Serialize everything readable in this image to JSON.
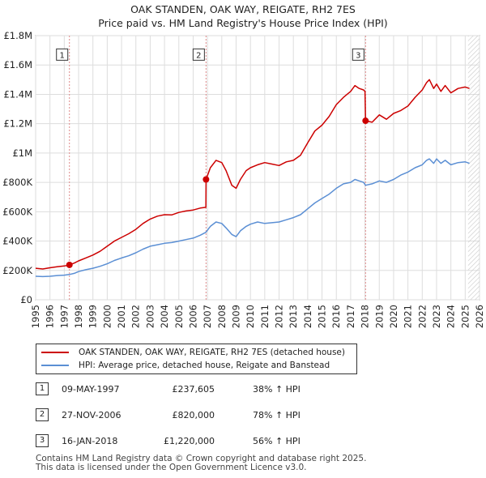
{
  "title_line1": "OAK STANDEN, OAK WAY, REIGATE, RH2 7ES",
  "title_line2": "Price paid vs. HM Land Registry's House Price Index (HPI)",
  "chart_data": {
    "type": "line",
    "title": "OAK STANDEN, OAK WAY, REIGATE, RH2 7ES — Price paid vs. HM Land Registry's House Price Index (HPI)",
    "xlim": [
      1995,
      2026
    ],
    "ylim": [
      0,
      1800000
    ],
    "x_ticks": [
      "1995",
      "1996",
      "1997",
      "1998",
      "1999",
      "2000",
      "2001",
      "2002",
      "2003",
      "2004",
      "2005",
      "2006",
      "2007",
      "2008",
      "2009",
      "2010",
      "2011",
      "2012",
      "2013",
      "2014",
      "2015",
      "2016",
      "2017",
      "2018",
      "2019",
      "2020",
      "2021",
      "2022",
      "2023",
      "2024",
      "2025",
      "2026"
    ],
    "y_ticks": [
      {
        "value": 0,
        "label": "£0"
      },
      {
        "value": 200000,
        "label": "£200K"
      },
      {
        "value": 400000,
        "label": "£400K"
      },
      {
        "value": 600000,
        "label": "£600K"
      },
      {
        "value": 800000,
        "label": "£800K"
      },
      {
        "value": 1000000,
        "label": "£1M"
      },
      {
        "value": 1200000,
        "label": "£1.2M"
      },
      {
        "value": 1400000,
        "label": "£1.4M"
      },
      {
        "value": 1600000,
        "label": "£1.6M"
      },
      {
        "value": 1800000,
        "label": "£1.8M"
      }
    ],
    "grid": true,
    "shaded_region": {
      "from": 2025.2,
      "to": 2026,
      "note": "forecast hatched"
    },
    "series": [
      {
        "name": "OAK STANDEN, OAK WAY, REIGATE, RH2 7ES (detached house)",
        "color": "#cc0000",
        "x": [
          1995.0,
          1995.5,
          1996.0,
          1996.5,
          1997.0,
          1997.36,
          1997.7,
          1998.0,
          1998.5,
          1999.0,
          1999.5,
          2000.0,
          2000.5,
          2001.0,
          2001.5,
          2002.0,
          2002.5,
          2003.0,
          2003.5,
          2004.0,
          2004.5,
          2005.0,
          2005.5,
          2006.0,
          2006.5,
          2006.89,
          2006.9,
          2007.2,
          2007.6,
          2008.0,
          2008.3,
          2008.7,
          2009.0,
          2009.3,
          2009.7,
          2010.0,
          2010.5,
          2011.0,
          2011.5,
          2012.0,
          2012.5,
          2013.0,
          2013.5,
          2014.0,
          2014.5,
          2015.0,
          2015.5,
          2016.0,
          2016.5,
          2017.0,
          2017.3,
          2017.6,
          2017.9,
          2018.0,
          2018.04,
          2018.5,
          2019.0,
          2019.5,
          2020.0,
          2020.5,
          2021.0,
          2021.5,
          2022.0,
          2022.3,
          2022.5,
          2022.8,
          2023.0,
          2023.3,
          2023.6,
          2024.0,
          2024.5,
          2025.0,
          2025.3
        ],
        "values": [
          215000,
          210000,
          218000,
          225000,
          230000,
          237605,
          250000,
          265000,
          285000,
          305000,
          330000,
          365000,
          400000,
          425000,
          450000,
          480000,
          520000,
          550000,
          570000,
          580000,
          578000,
          595000,
          605000,
          612000,
          625000,
          630000,
          820000,
          900000,
          950000,
          935000,
          880000,
          780000,
          760000,
          820000,
          880000,
          900000,
          920000,
          935000,
          925000,
          915000,
          940000,
          950000,
          985000,
          1070000,
          1150000,
          1190000,
          1250000,
          1330000,
          1380000,
          1420000,
          1460000,
          1440000,
          1430000,
          1420000,
          1220000,
          1210000,
          1260000,
          1230000,
          1270000,
          1290000,
          1320000,
          1380000,
          1430000,
          1480000,
          1500000,
          1440000,
          1470000,
          1420000,
          1460000,
          1410000,
          1440000,
          1450000,
          1440000
        ]
      },
      {
        "name": "HPI: Average price, detached house, Reigate and Banstead",
        "color": "#5b8fd4",
        "x": [
          1995.0,
          1995.5,
          1996.0,
          1996.5,
          1997.0,
          1997.36,
          1997.7,
          1998.0,
          1998.5,
          1999.0,
          1999.5,
          2000.0,
          2000.5,
          2001.0,
          2001.5,
          2002.0,
          2002.5,
          2003.0,
          2003.5,
          2004.0,
          2004.5,
          2005.0,
          2005.5,
          2006.0,
          2006.5,
          2006.89,
          2007.2,
          2007.6,
          2008.0,
          2008.3,
          2008.7,
          2009.0,
          2009.3,
          2009.7,
          2010.0,
          2010.5,
          2011.0,
          2011.5,
          2012.0,
          2012.5,
          2013.0,
          2013.5,
          2014.0,
          2014.5,
          2015.0,
          2015.5,
          2016.0,
          2016.5,
          2017.0,
          2017.3,
          2017.6,
          2017.9,
          2018.04,
          2018.5,
          2019.0,
          2019.5,
          2020.0,
          2020.5,
          2021.0,
          2021.5,
          2022.0,
          2022.3,
          2022.5,
          2022.8,
          2023.0,
          2023.3,
          2023.6,
          2024.0,
          2024.5,
          2025.0,
          2025.3
        ],
        "values": [
          160000,
          158000,
          160000,
          165000,
          168000,
          172000,
          180000,
          192000,
          205000,
          215000,
          228000,
          245000,
          268000,
          285000,
          300000,
          320000,
          345000,
          365000,
          375000,
          385000,
          390000,
          400000,
          410000,
          420000,
          440000,
          460000,
          500000,
          530000,
          520000,
          490000,
          445000,
          430000,
          470000,
          500000,
          515000,
          530000,
          520000,
          525000,
          530000,
          545000,
          560000,
          580000,
          620000,
          660000,
          690000,
          720000,
          760000,
          790000,
          800000,
          820000,
          810000,
          800000,
          780000,
          790000,
          810000,
          800000,
          820000,
          850000,
          870000,
          900000,
          920000,
          950000,
          960000,
          930000,
          960000,
          930000,
          950000,
          920000,
          935000,
          940000,
          930000
        ]
      }
    ],
    "sales": [
      {
        "marker": "1",
        "x": 1997.36,
        "value": 237605
      },
      {
        "marker": "2",
        "x": 2006.9,
        "value": 820000
      },
      {
        "marker": "3",
        "x": 2018.04,
        "value": 1220000
      }
    ]
  },
  "legend": [
    {
      "label": "OAK STANDEN, OAK WAY, REIGATE, RH2 7ES (detached house)",
      "color": "#cc0000"
    },
    {
      "label": "HPI: Average price, detached house, Reigate and Banstead",
      "color": "#5b8fd4"
    }
  ],
  "sales_table": [
    {
      "num": "1",
      "date": "09-MAY-1997",
      "price": "£237,605",
      "hpi": "38% ↑ HPI"
    },
    {
      "num": "2",
      "date": "27-NOV-2006",
      "price": "£820,000",
      "hpi": "78% ↑ HPI"
    },
    {
      "num": "3",
      "date": "16-JAN-2018",
      "price": "£1,220,000",
      "hpi": "56% ↑ HPI"
    }
  ],
  "footer_line1": "Contains HM Land Registry data © Crown copyright and database right 2025.",
  "footer_line2": "This data is licensed under the Open Government Licence v3.0."
}
